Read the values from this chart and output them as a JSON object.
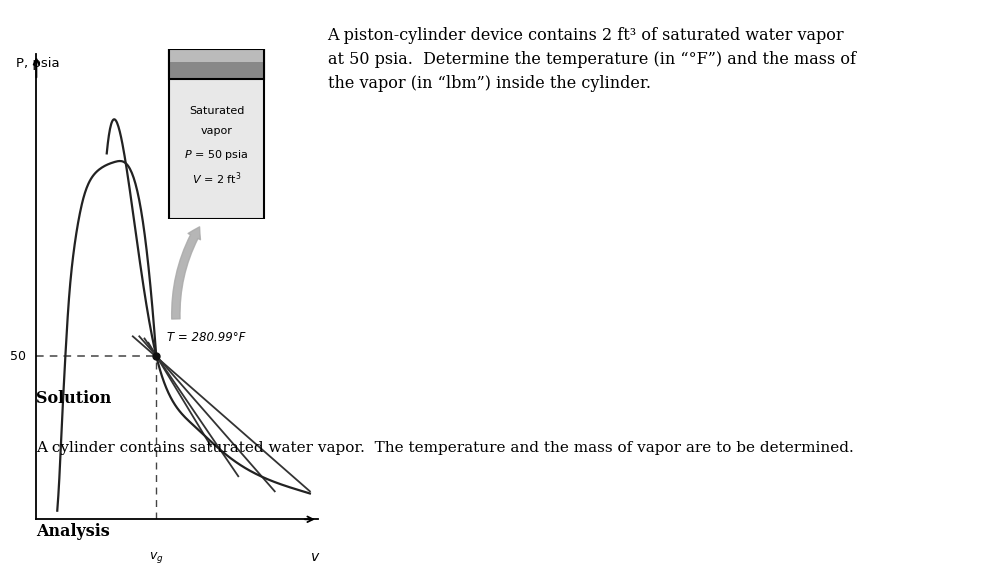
{
  "background_color": "#ffffff",
  "top_bar_color": "#666666",
  "bottom_bar_color": "#bbbbbb",
  "problem_text": "A piston-cylinder device contains 2 ft³ of saturated water vapor\nat 50 psia.  Determine the temperature (in “°F”) and the mass of\nthe vapor (in “lbm”) inside the cylinder.",
  "solution_label": "Solution",
  "solution_text": "A cylinder contains saturated water vapor.  The temperature and the mass of vapor are to be determined.",
  "analysis_label": "Analysis",
  "cylinder_label": "Saturated\nvapor\n$P$ = 50 psia\n$V$ = 2 ft$^3$",
  "axis_xlabel": "v",
  "axis_ylabel": "P, psia",
  "axis_ytick_label": "50",
  "temperature_label": "T = 280.99°F",
  "p50_dashed_color": "#444444",
  "curve_color": "#222222",
  "isotherm_color": "#333333",
  "cylinder_body_color": "#e8e8e8",
  "cylinder_piston_top_color": "#bbbbbb",
  "cylinder_piston_mid_color": "#888888",
  "arrow_color": "#aaaaaa",
  "dot_color": "#111111"
}
